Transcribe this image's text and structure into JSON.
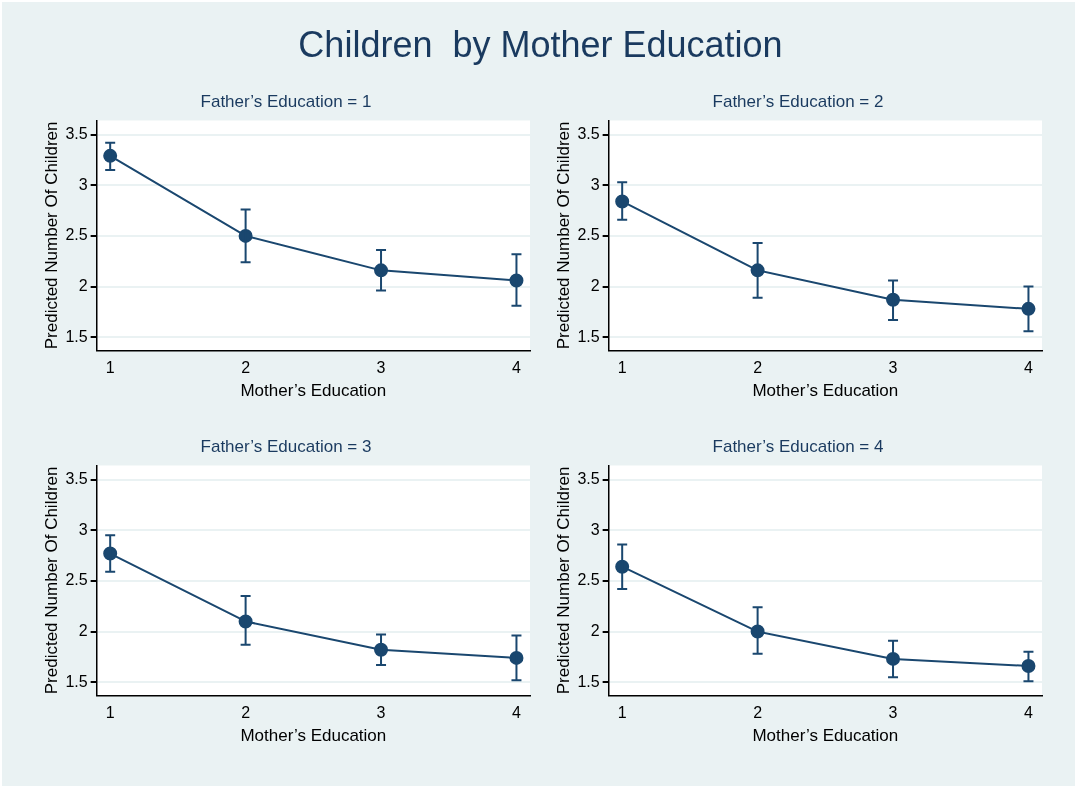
{
  "chart_data": [
    {
      "type": "line",
      "title": "Children  by Mother Education",
      "subtitle": "Father’s Education = 1",
      "xlabel": "Mother’s Education",
      "ylabel": "Predicted Number Of Children",
      "x": [
        1,
        2,
        3,
        4
      ],
      "xlim": [
        0.9,
        4.1
      ],
      "xticks": [
        1,
        2,
        3,
        4
      ],
      "ylim": [
        1.37,
        3.64
      ],
      "yticks": [
        1.5,
        2,
        2.5,
        3,
        3.5
      ],
      "grid": "y",
      "marker": "circle",
      "legend": false,
      "series": [
        {
          "color": "#1a476f",
          "values": [
            3.29,
            2.5,
            2.16,
            2.06
          ],
          "errors": [
            [
              3.15,
              3.42
            ],
            [
              2.24,
              2.76
            ],
            [
              1.96,
              2.36
            ],
            [
              1.81,
              2.32
            ]
          ]
        }
      ]
    },
    {
      "type": "line",
      "subtitle": "Father’s Education = 2",
      "xlabel": "Mother’s Education",
      "ylabel": "Predicted Number Of Children",
      "x": [
        1,
        2,
        3,
        4
      ],
      "xlim": [
        0.9,
        4.1
      ],
      "xticks": [
        1,
        2,
        3,
        4
      ],
      "ylim": [
        1.37,
        3.64
      ],
      "yticks": [
        1.5,
        2,
        2.5,
        3,
        3.5
      ],
      "grid": "y",
      "marker": "circle",
      "legend": false,
      "series": [
        {
          "color": "#1a476f",
          "values": [
            2.84,
            2.16,
            1.87,
            1.78
          ],
          "errors": [
            [
              2.66,
              3.03
            ],
            [
              1.89,
              2.43
            ],
            [
              1.67,
              2.06
            ],
            [
              1.56,
              2.0
            ]
          ]
        }
      ]
    },
    {
      "type": "line",
      "subtitle": "Father’s Education = 3",
      "xlabel": "Mother’s Education",
      "ylabel": "Predicted Number Of Children",
      "x": [
        1,
        2,
        3,
        4
      ],
      "xlim": [
        0.9,
        4.1
      ],
      "xticks": [
        1,
        2,
        3,
        4
      ],
      "ylim": [
        1.37,
        3.64
      ],
      "yticks": [
        1.5,
        2,
        2.5,
        3,
        3.5
      ],
      "grid": "y",
      "marker": "circle",
      "legend": false,
      "series": [
        {
          "color": "#1a476f",
          "values": [
            2.77,
            2.1,
            1.82,
            1.74
          ],
          "errors": [
            [
              2.59,
              2.95
            ],
            [
              1.87,
              2.35
            ],
            [
              1.67,
              1.97
            ],
            [
              1.52,
              1.96
            ]
          ]
        }
      ]
    },
    {
      "type": "line",
      "subtitle": "Father’s Education = 4",
      "xlabel": "Mother’s Education",
      "ylabel": "Predicted Number Of Children",
      "x": [
        1,
        2,
        3,
        4
      ],
      "xlim": [
        0.9,
        4.1
      ],
      "xticks": [
        1,
        2,
        3,
        4
      ],
      "ylim": [
        1.37,
        3.64
      ],
      "yticks": [
        1.5,
        2,
        2.5,
        3,
        3.5
      ],
      "grid": "y",
      "marker": "circle",
      "legend": false,
      "series": [
        {
          "color": "#1a476f",
          "values": [
            2.64,
            2.0,
            1.73,
            1.66
          ],
          "errors": [
            [
              2.42,
              2.86
            ],
            [
              1.78,
              2.24
            ],
            [
              1.55,
              1.91
            ],
            [
              1.51,
              1.8
            ]
          ]
        }
      ]
    }
  ]
}
